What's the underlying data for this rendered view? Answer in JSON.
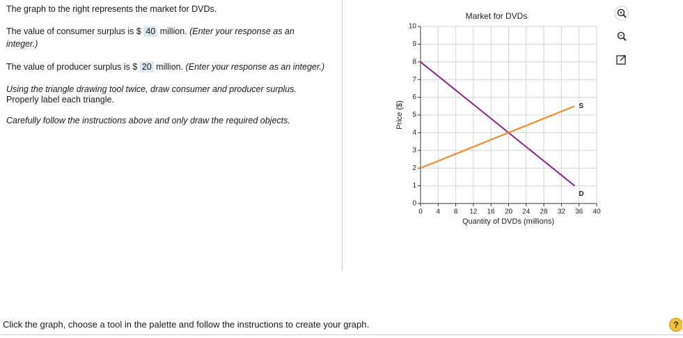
{
  "question": {
    "intro": "The graph to the right represents the market for DVDs.",
    "consumer": {
      "before": "The value of consumer surplus is $",
      "answer": 40,
      "after": "million.",
      "hint": "(Enter your response as an integer.)"
    },
    "producer": {
      "before": "The value of producer surplus is $",
      "answer": 20,
      "after": "million.",
      "hint": "(Enter your response as an integer.)"
    },
    "instruction_1": "Using the triangle drawing tool twice, draw consumer and producer surplus.",
    "instruction_2": "Properly label each triangle.",
    "instruction_3": "Carefully follow the instructions above and only draw the required objects.",
    "footer": "Click the graph, choose a tool in the palette and follow the instructions to create your graph.",
    "help_icon": "?"
  },
  "chart_data": {
    "type": "line",
    "title": "Market for DVDs",
    "xlabel": "Quantity of DVDs (millions)",
    "ylabel": "Price ($)",
    "x": [
      0,
      35
    ],
    "series": [
      {
        "name": "D",
        "color": "#8e1f8e",
        "values": [
          8,
          1
        ]
      },
      {
        "name": "S",
        "color": "#f5821f",
        "values": [
          2,
          5.5
        ]
      }
    ],
    "xlim": [
      0,
      40
    ],
    "xticks": [
      0,
      4,
      8,
      12,
      16,
      20,
      24,
      28,
      32,
      36,
      40
    ],
    "ylim": [
      0,
      10
    ],
    "yticks": [
      0,
      1,
      2,
      3,
      4,
      5,
      6,
      7,
      8,
      9,
      10
    ],
    "grid": true
  }
}
